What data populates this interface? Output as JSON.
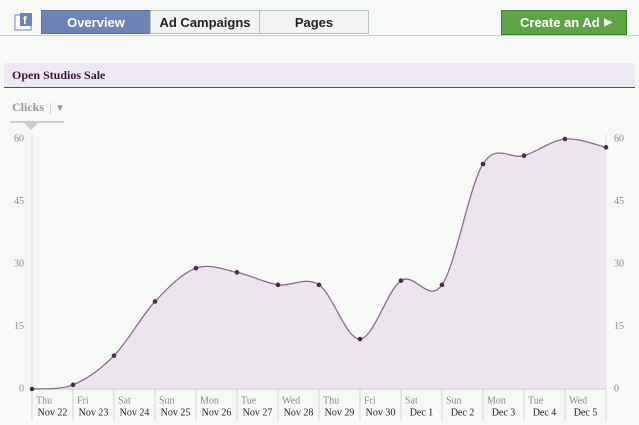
{
  "nav": {
    "tabs": [
      "Overview",
      "Ad Campaigns",
      "Pages"
    ],
    "button": "Create an Ad"
  },
  "section": {
    "title": "Open Studios Sale"
  },
  "metric": "Clicks",
  "chart_data": {
    "type": "line",
    "categories": [
      "Nov 22",
      "Nov 23",
      "Nov 24",
      "Nov 25",
      "Nov 26",
      "Nov 27",
      "Nov 28",
      "Nov 29",
      "Nov 30",
      "Dec 1",
      "Dec 2",
      "Dec 3",
      "Dec 4",
      "Dec 5",
      null
    ],
    "weekdays": [
      "Thu",
      "Fri",
      "Sat",
      "Sun",
      "Mon",
      "Tue",
      "Wed",
      "Thu",
      "Fri",
      "Sat",
      "Sun",
      "Mon",
      "Tue",
      "Wed",
      null
    ],
    "values": [
      0,
      1,
      8,
      21,
      29,
      28,
      25,
      25,
      12,
      26,
      25,
      54,
      56,
      60,
      58
    ],
    "color": "#8c6a8c",
    "fill_color": "#ece5ee",
    "ylim": [
      0,
      60
    ],
    "yticks": [
      0,
      15,
      30,
      45,
      60
    ],
    "y2lim": [
      0,
      60
    ],
    "y2ticks": [
      0,
      15,
      30,
      45,
      60
    ]
  }
}
